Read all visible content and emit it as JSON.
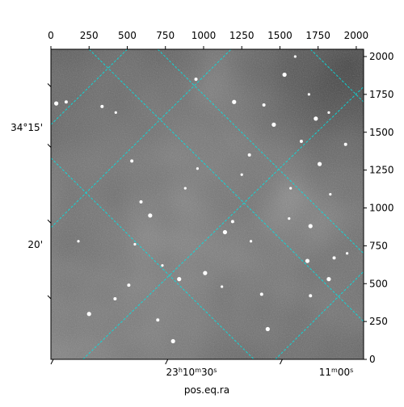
{
  "chart_data": {
    "type": "image",
    "xlabel": "pos.eq.ra",
    "ylabel": "",
    "pixel_axes": {
      "x": {
        "lim": [
          0,
          2048
        ],
        "ticks": [
          0,
          250,
          500,
          750,
          1000,
          1250,
          1500,
          1750,
          2000
        ]
      },
      "y": {
        "lim": [
          0,
          2048
        ],
        "ticks": [
          0,
          250,
          500,
          750,
          1000,
          1250,
          1500,
          1750,
          2000
        ]
      }
    },
    "ra_tick_labels": [
      {
        "hours": "23",
        "minutes": "10",
        "seconds": "30"
      },
      {
        "hours": "",
        "minutes": "11",
        "seconds": "00"
      }
    ],
    "dec_tick_labels": [
      "34°15'",
      "20'"
    ],
    "grid": true,
    "grid_color": "#00e5e5",
    "image_colormap": "gray",
    "bright_sources": [
      [
        35,
        1690
      ],
      [
        335,
        1670
      ],
      [
        425,
        1630
      ],
      [
        1530,
        1880
      ],
      [
        1395,
        1680
      ],
      [
        1820,
        1630
      ],
      [
        1735,
        1590
      ],
      [
        590,
        1040
      ],
      [
        880,
        1130
      ],
      [
        1140,
        840
      ],
      [
        1190,
        910
      ],
      [
        730,
        620
      ],
      [
        840,
        530
      ],
      [
        510,
        490
      ],
      [
        1310,
        780
      ],
      [
        1680,
        650
      ],
      [
        1855,
        670
      ],
      [
        1560,
        930
      ],
      [
        1700,
        880
      ],
      [
        1300,
        1350
      ],
      [
        550,
        760
      ],
      [
        650,
        950
      ],
      [
        420,
        400
      ],
      [
        960,
        1260
      ],
      [
        1420,
        200
      ],
      [
        700,
        260
      ],
      [
        1120,
        480
      ],
      [
        1010,
        570
      ],
      [
        1930,
        1420
      ],
      [
        1830,
        1090
      ],
      [
        1460,
        1550
      ],
      [
        1640,
        1440
      ],
      [
        1250,
        1220
      ],
      [
        800,
        120
      ],
      [
        1700,
        420
      ],
      [
        1940,
        700
      ],
      [
        1820,
        530
      ],
      [
        1380,
        430
      ],
      [
        1570,
        1130
      ],
      [
        1760,
        1290
      ],
      [
        950,
        1850
      ],
      [
        1600,
        2000
      ],
      [
        1200,
        1700
      ],
      [
        530,
        1310
      ],
      [
        180,
        780
      ],
      [
        250,
        300
      ],
      [
        100,
        1700
      ],
      [
        1690,
        1750
      ]
    ]
  }
}
